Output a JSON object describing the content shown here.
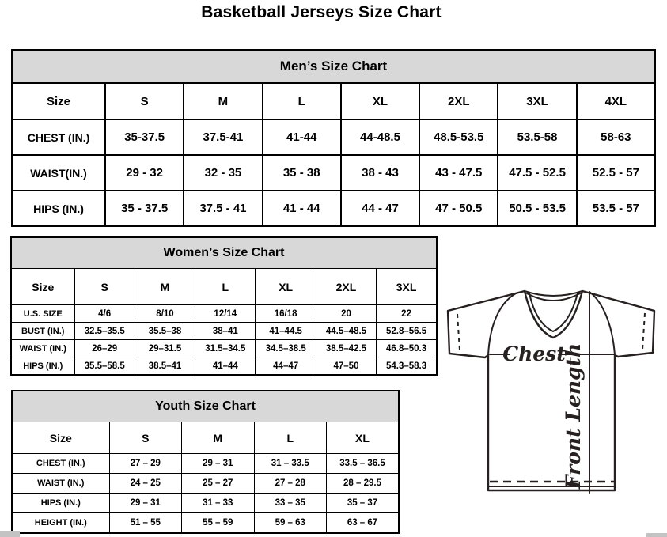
{
  "page_title": "Basketball Jerseys Size Chart",
  "tables": [
    {
      "id": "mens",
      "title": "Men’s Size Chart",
      "columns": [
        "Size",
        "S",
        "M",
        "L",
        "XL",
        "2XL",
        "3XL",
        "4XL"
      ],
      "rows": [
        {
          "label": "CHEST (IN.)",
          "values": [
            "35-37.5",
            "37.5-41",
            "41-44",
            "44-48.5",
            "48.5-53.5",
            "53.5-58",
            "58-63"
          ]
        },
        {
          "label": "WAIST(IN.)",
          "values": [
            "29 - 32",
            "32 - 35",
            "35 - 38",
            "38 - 43",
            "43 - 47.5",
            "47.5 - 52.5",
            "52.5 - 57"
          ]
        },
        {
          "label": "HIPS (IN.)",
          "values": [
            "35 - 37.5",
            "37.5 - 41",
            "41 - 44",
            "44 - 47",
            "47 - 50.5",
            "50.5 - 53.5",
            "53.5 - 57"
          ]
        }
      ]
    },
    {
      "id": "womens",
      "title": "Women’s Size Chart",
      "columns": [
        "Size",
        "S",
        "M",
        "L",
        "XL",
        "2XL",
        "3XL"
      ],
      "rows": [
        {
          "label": "U.S. SIZE",
          "values": [
            "4/6",
            "8/10",
            "12/14",
            "16/18",
            "20",
            "22"
          ]
        },
        {
          "label": "BUST (IN.)",
          "values": [
            "32.5–35.5",
            "35.5–38",
            "38–41",
            "41–44.5",
            "44.5–48.5",
            "52.8–56.5"
          ]
        },
        {
          "label": "WAIST (IN.)",
          "values": [
            "26–29",
            "29–31.5",
            "31.5–34.5",
            "34.5–38.5",
            "38.5–42.5",
            "46.8–50.3"
          ]
        },
        {
          "label": "HIPS (IN.)",
          "values": [
            "35.5–58.5",
            "38.5–41",
            "41–44",
            "44–47",
            "47–50",
            "54.3–58.3"
          ]
        }
      ]
    },
    {
      "id": "youth",
      "title": "Youth Size Chart",
      "columns": [
        "Size",
        "S",
        "M",
        "L",
        "XL"
      ],
      "rows": [
        {
          "label": "CHEST (IN.)",
          "values": [
            "27 – 29",
            "29 – 31",
            "31 – 33.5",
            "33.5 – 36.5"
          ]
        },
        {
          "label": "WAIST (IN.)",
          "values": [
            "24 – 25",
            "25 – 27",
            "27 – 28",
            "28 – 29.5"
          ]
        },
        {
          "label": "HIPS (IN.)",
          "values": [
            "29 – 31",
            "31 – 33",
            "33 – 35",
            "35 – 37"
          ]
        },
        {
          "label": "HEIGHT (IN.)",
          "values": [
            "51 – 55",
            "55 – 59",
            "59 – 63",
            "63 – 67"
          ]
        }
      ]
    }
  ],
  "diagram": {
    "chest_label": "Chest",
    "front_length_label": "Front Length"
  }
}
